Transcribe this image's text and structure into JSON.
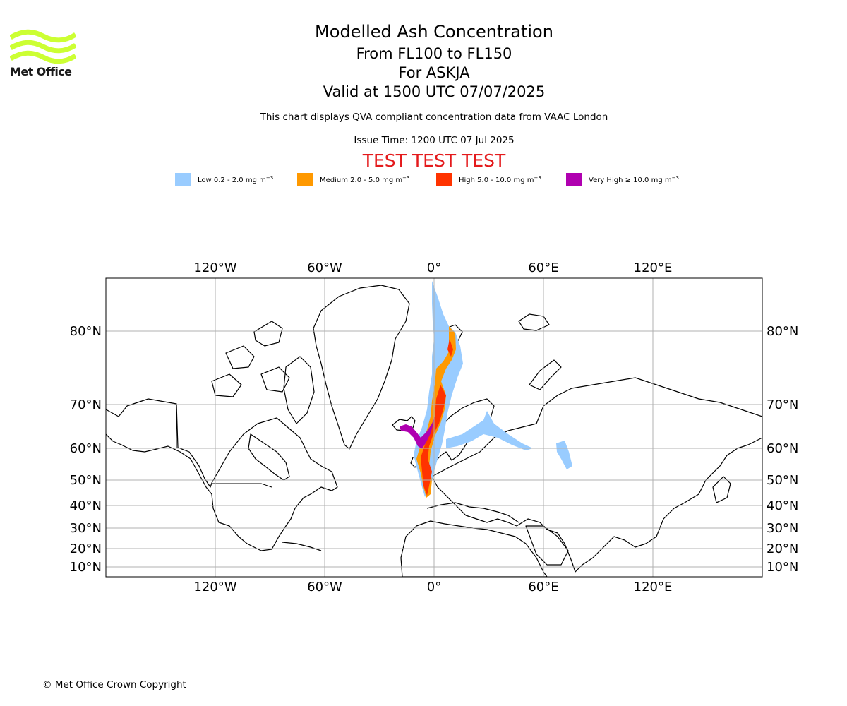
{
  "logo": {
    "text": "Met Office",
    "color": "#ccff33"
  },
  "header": {
    "title": "Modelled Ash Concentration",
    "levels": "From FL100 to FL150",
    "volcano": "For ASKJA",
    "valid": "Valid at 1500 UTC 07/07/2025",
    "note": "This chart displays QVA compliant concentration data from VAAC London",
    "issue": "Issue Time: 1200 UTC 07 Jul 2025",
    "test_banner": "TEST TEST TEST"
  },
  "legend": [
    {
      "label": "Low 0.2 - 2.0 mg m",
      "exp": "−3",
      "color": "#99ccff"
    },
    {
      "label": "Medium 2.0 - 5.0 mg m",
      "exp": "−3",
      "color": "#ff9900"
    },
    {
      "label": "High 5.0 - 10.0 mg m",
      "exp": "−3",
      "color": "#ff3300"
    },
    {
      "label": "Very High  ≥  10.0 mg m",
      "exp": "−3",
      "color": "#b000b0"
    }
  ],
  "map": {
    "lon_labels": [
      "120°W",
      "60°W",
      "0°",
      "60°E",
      "120°E"
    ],
    "lat_labels": [
      "80°N",
      "70°N",
      "60°N",
      "50°N",
      "40°N",
      "30°N",
      "20°N",
      "10°N"
    ],
    "grid": true
  },
  "footer": {
    "copyright": "© Met Office Crown Copyright"
  }
}
